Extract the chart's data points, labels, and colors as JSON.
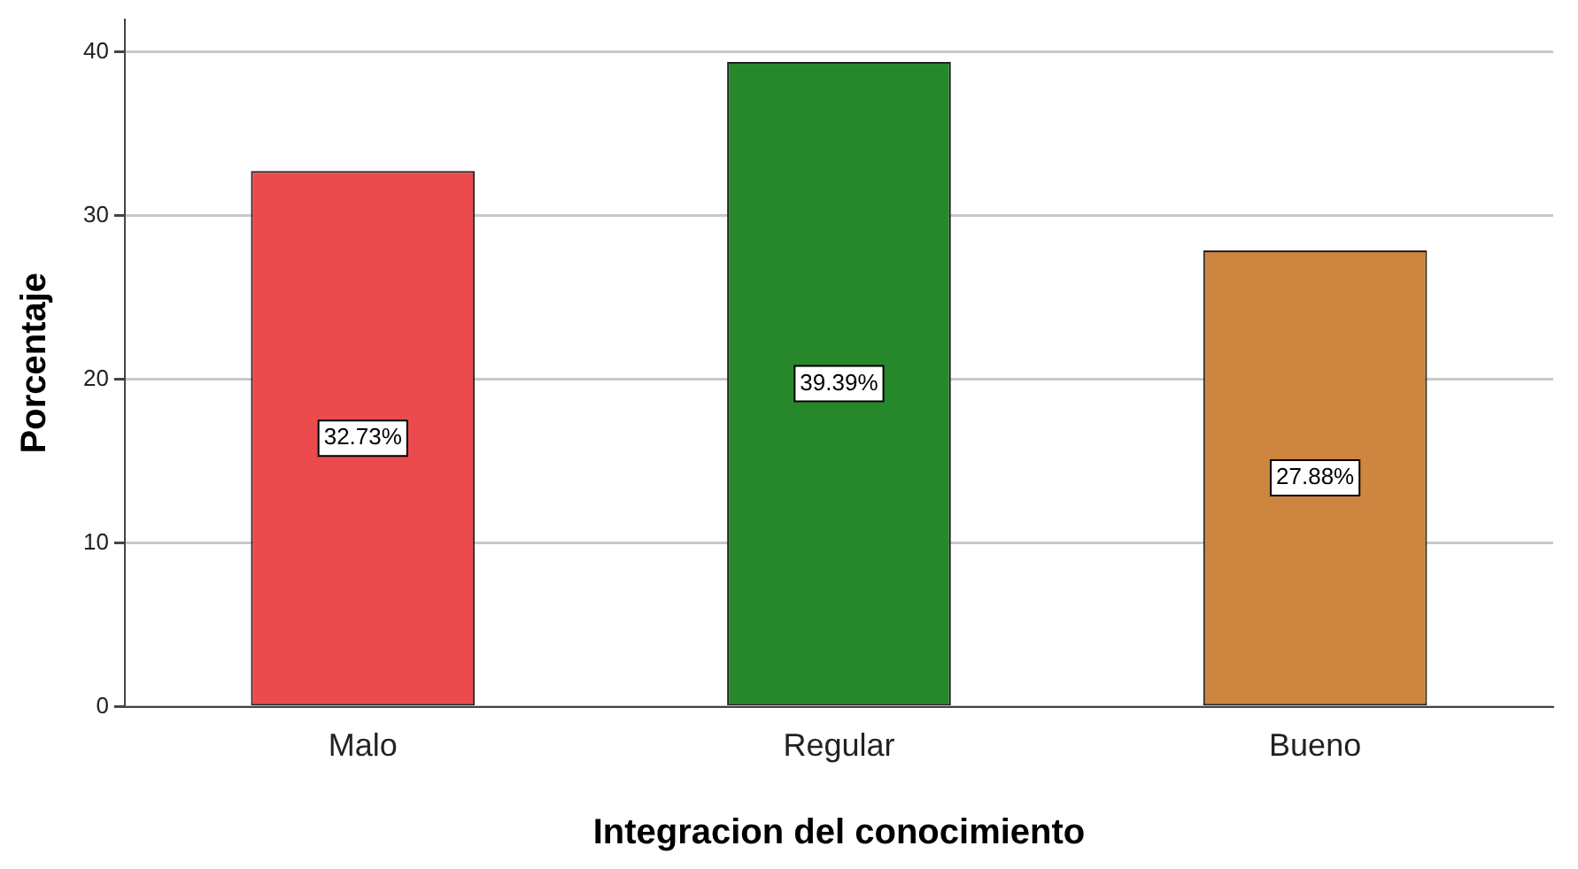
{
  "chart_data": {
    "type": "bar",
    "xlabel": "Integracion del conocimiento",
    "ylabel": "Porcentaje",
    "categories": [
      "Malo",
      "Regular",
      "Bueno"
    ],
    "values": [
      32.73,
      39.39,
      27.88
    ],
    "colors": [
      "#eb4b4d",
      "#27882b",
      "#cd853f"
    ],
    "value_labels": [
      "32.73%",
      "39.39%",
      "27.88%"
    ],
    "ylim": [
      0,
      42
    ],
    "yticks": [
      0,
      10,
      20,
      30,
      40
    ],
    "grid": "y",
    "legend": false
  }
}
